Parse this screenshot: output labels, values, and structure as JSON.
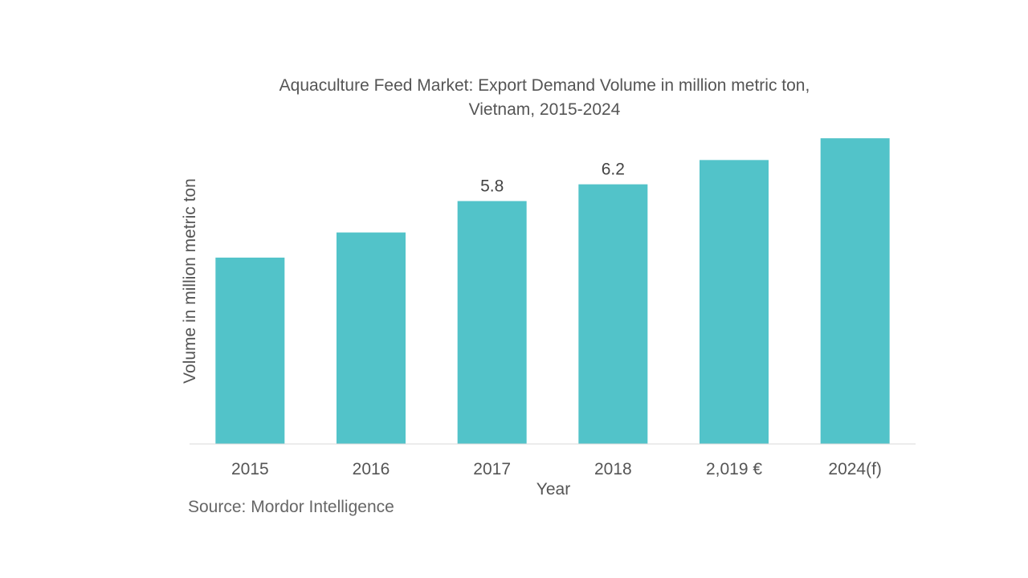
{
  "chart_data": {
    "type": "bar",
    "title_lines": [
      "Aquaculture Feed Market: Export Demand Volume in million metric ton,",
      "Vietnam, 2015-2024"
    ],
    "xlabel": "Year",
    "ylabel": "Volume in million metric ton",
    "categories": [
      "2015",
      "2016",
      "2017",
      "2018",
      "2,019 €",
      "2024(f)"
    ],
    "values": [
      4.45,
      5.05,
      5.8,
      6.2,
      6.78,
      7.3
    ],
    "data_labels": [
      "",
      "",
      "5.8",
      "6.2",
      "",
      ""
    ],
    "ylim": [
      0,
      7.4
    ],
    "grid": false,
    "bar_color": "#52c3c9",
    "axis_color": "#d9d9d9"
  },
  "source": "Source: Mordor Intelligence"
}
